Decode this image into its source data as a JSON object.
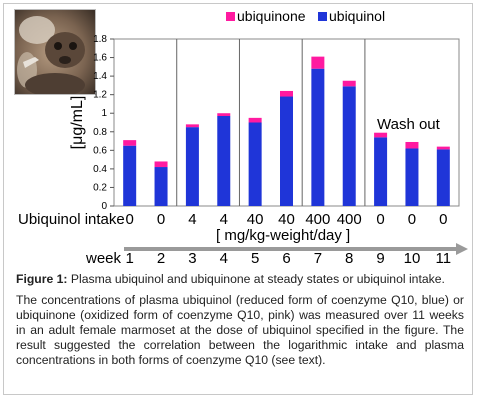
{
  "chart_data": {
    "type": "bar",
    "stacked": true,
    "categories": [
      "1",
      "2",
      "3",
      "4",
      "5",
      "6",
      "7",
      "8",
      "9",
      "10",
      "11"
    ],
    "series": [
      {
        "name": "ubiquinol",
        "color": "#1f35d8",
        "values": [
          0.65,
          0.42,
          0.85,
          0.97,
          0.9,
          1.18,
          1.48,
          1.29,
          0.74,
          0.62,
          0.61
        ]
      },
      {
        "name": "ubiquinone",
        "color": "#ff1aa0",
        "values": [
          0.06,
          0.06,
          0.03,
          0.03,
          0.05,
          0.06,
          0.13,
          0.06,
          0.05,
          0.07,
          0.03
        ]
      }
    ],
    "ylim": [
      0,
      1.8
    ],
    "yticks": [
      "0",
      "0.2",
      "0.4",
      "0.6",
      "0.8",
      "1",
      "1.2",
      "1.4",
      "1.6",
      "1.8"
    ],
    "ylabel": "[μg/mL]",
    "legend": "top-right",
    "annotation": "Wash out",
    "dividers_after_category": [
      2,
      4,
      6,
      8
    ],
    "dose_row_label": "Ubiquinol intake",
    "doses": [
      "0",
      "0",
      "4",
      "4",
      "40",
      "40",
      "400",
      "400",
      "0",
      "0",
      "0"
    ],
    "dose_unit": "[ mg/kg-weight/day ]",
    "week_row_label": "week",
    "weeks": [
      "1",
      "2",
      "3",
      "4",
      "5",
      "6",
      "7",
      "8",
      "9",
      "10",
      "11"
    ]
  },
  "caption": {
    "figure_label": "Figure 1:",
    "figure_title": "Plasma ubiquinol and ubiquinone at steady states or ubiquinol intake.",
    "description": "The concentrations of plasma ubiquinol (reduced form of coenzyme Q10, blue) or ubiquinone (oxidized form of coenzyme Q10, pink) was measured over 11 weeks in an adult female marmoset at the dose of ubiquinol specified in the figure. The result suggested the correlation between the logarithmic intake and plasma concentrations in both forms of coenzyme Q10 (see text)."
  }
}
